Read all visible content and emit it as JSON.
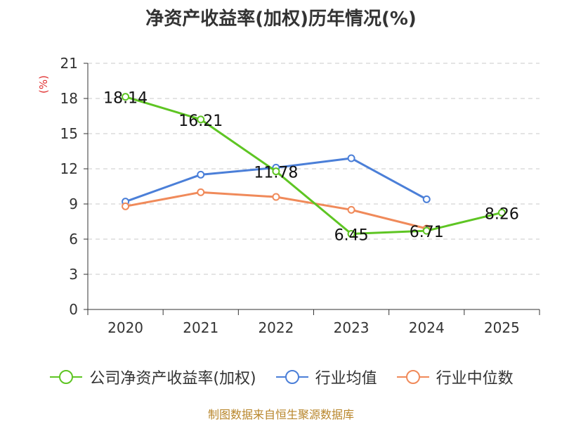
{
  "chart_data": {
    "type": "line",
    "title": "净资产收益率(加权)历年情况(%)",
    "ylabel": "(%)",
    "xlabel": "",
    "categories": [
      "2020",
      "2021",
      "2022",
      "2023",
      "2024",
      "2025"
    ],
    "ylim": [
      0,
      21
    ],
    "yticks": [
      0,
      3,
      6,
      9,
      12,
      15,
      18,
      21
    ],
    "grid": true,
    "legend_position": "bottom",
    "series": [
      {
        "name": "公司净资产收益率(加权)",
        "color": "#5ec523",
        "values": [
          18.14,
          16.21,
          11.78,
          6.45,
          6.71,
          8.26
        ],
        "labels": [
          "18.14",
          "16.21",
          "11.78",
          "6.45",
          "6.71",
          "8.26"
        ]
      },
      {
        "name": "行业均值",
        "color": "#4b7fd8",
        "values": [
          9.2,
          11.5,
          12.1,
          12.9,
          9.4,
          null
        ]
      },
      {
        "name": "行业中位数",
        "color": "#f08a5a",
        "values": [
          8.8,
          10.0,
          9.6,
          8.5,
          6.9,
          null
        ]
      }
    ]
  },
  "source": "制图数据来自恒生聚源数据库"
}
